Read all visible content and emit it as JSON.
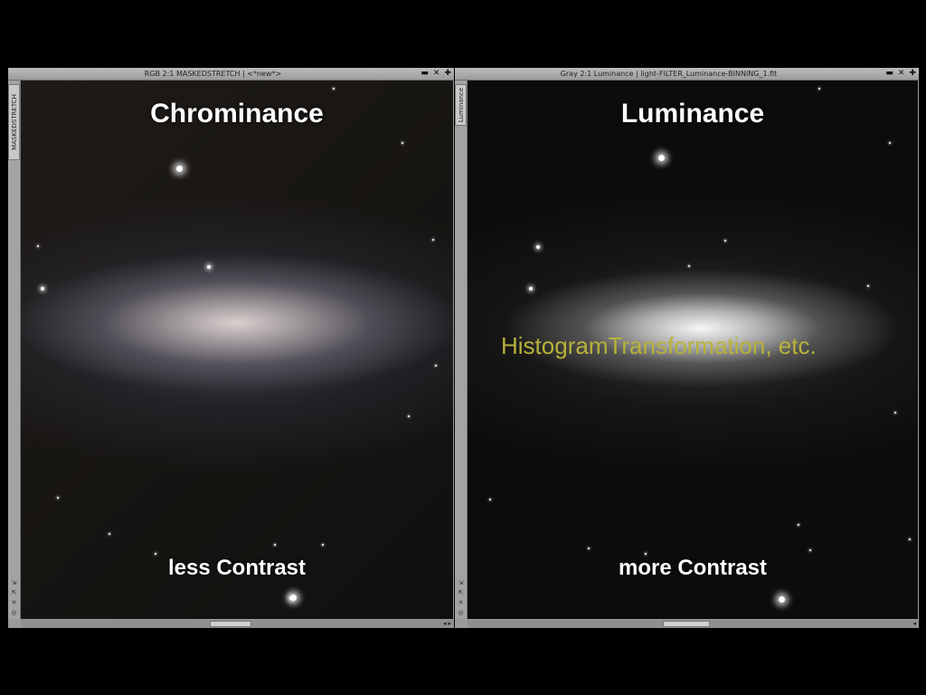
{
  "windows": {
    "left": {
      "title": "RGB 2:1 MASKEDSTRETCH | <*new*>",
      "side_tab": "MASKEDSTRETCH",
      "caption_top": "Chrominance",
      "caption_bottom": "less Contrast",
      "buttons": [
        "minimize-icon",
        "close-icon",
        "maximize-icon"
      ]
    },
    "right": {
      "title": "Gray 2:1 Luminance | light-FILTER_Luminance-BINNING_1.fit",
      "side_tab": "Luminance",
      "caption_top": "Luminance",
      "caption_bottom": "more Contrast",
      "overlay": "HistogramTransformation, etc.",
      "overlay_color": "#b8b23a",
      "buttons": [
        "minimize-icon",
        "close-icon",
        "maximize-icon"
      ]
    }
  },
  "titlebar_buttons": {
    "minimize": "▬",
    "close": "✕",
    "maximize": "✚"
  },
  "side_icons": [
    "⇲",
    "⇱",
    "✕",
    "◎"
  ],
  "scroll_arrows": "◂ ▸"
}
